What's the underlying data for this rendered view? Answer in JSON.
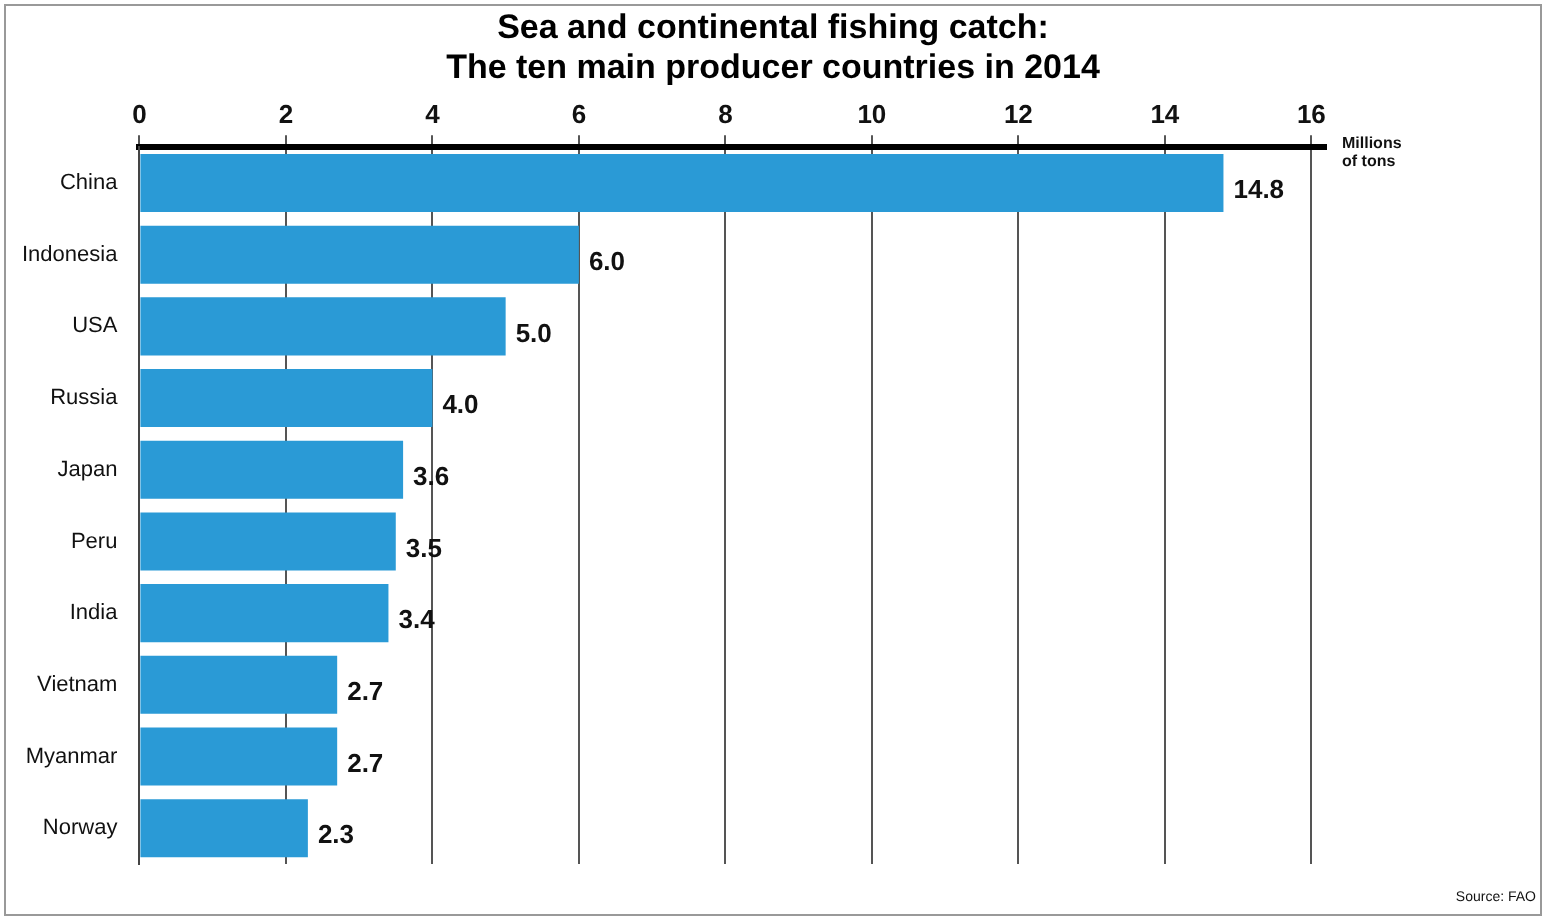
{
  "chart_data": {
    "type": "bar",
    "orientation": "horizontal",
    "title": "Sea and continental fishing catch:\nThe ten main producer countries in  2014",
    "xlabel": "Millions\nof tons",
    "categories": [
      "China",
      "Indonesia",
      "USA",
      "Russia",
      "Japan",
      "Peru",
      "India",
      "Vietnam",
      "Myanmar",
      "Norway"
    ],
    "values": [
      14.8,
      6.0,
      5.0,
      4.0,
      3.6,
      3.5,
      3.4,
      2.7,
      2.7,
      2.3
    ],
    "value_labels": [
      "14.8",
      "6.0",
      "5.0",
      "4.0",
      "3.6",
      "3.5",
      "3.4",
      "2.7",
      "2.7",
      "2.3"
    ],
    "color": "#2a9ad6",
    "xlim": [
      0,
      16.2
    ],
    "xticks": [
      0,
      2,
      4,
      6,
      8,
      10,
      12,
      14,
      16
    ],
    "grid": "x",
    "legend": false,
    "annotations": [
      "Source: FAO"
    ]
  }
}
